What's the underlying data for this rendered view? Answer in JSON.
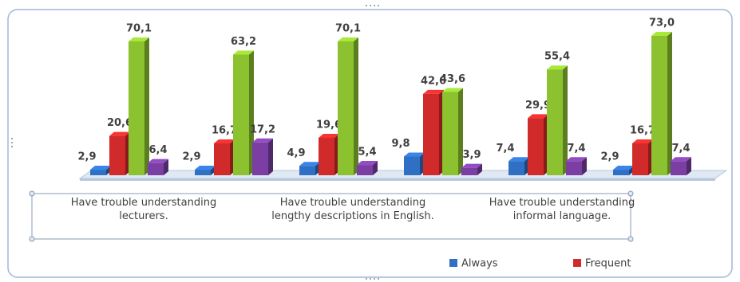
{
  "chart_data": {
    "type": "bar3d",
    "categories": [
      "Have trouble understanding lecturers.",
      null,
      "Have trouble understanding lengthy descriptions in English.",
      null,
      "Have trouble understanding informal language.",
      null
    ],
    "series": [
      {
        "name": "Always",
        "color": "#2f6fc4",
        "values": [
          2.9,
          2.9,
          4.9,
          9.8,
          7.4,
          2.9
        ],
        "value_labels": [
          "2,9",
          "2,9",
          "4,9",
          "9,8",
          "7,4",
          "2,9"
        ]
      },
      {
        "name": "Frequent",
        "color": "#d12a2a",
        "values": [
          20.6,
          16.7,
          19.6,
          42.6,
          29.9,
          16.7
        ],
        "value_labels": [
          "20,6",
          "16,7",
          "19,6",
          "42,6",
          "29,9",
          "16,7"
        ]
      },
      {
        "color": "#8cc230",
        "values": [
          70.1,
          63.2,
          70.1,
          43.6,
          55.4,
          73.0
        ],
        "value_labels": [
          "70,1",
          "63,2",
          "70,1",
          "43,6",
          "55,4",
          "73,0"
        ]
      },
      {
        "color": "#7b3fa3",
        "values": [
          6.4,
          17.2,
          5.4,
          3.9,
          7.4,
          7.4
        ],
        "value_labels": [
          "6,4",
          "17,2",
          "5,4",
          "3,9",
          "7,4",
          "7,4"
        ]
      }
    ]
  }
}
